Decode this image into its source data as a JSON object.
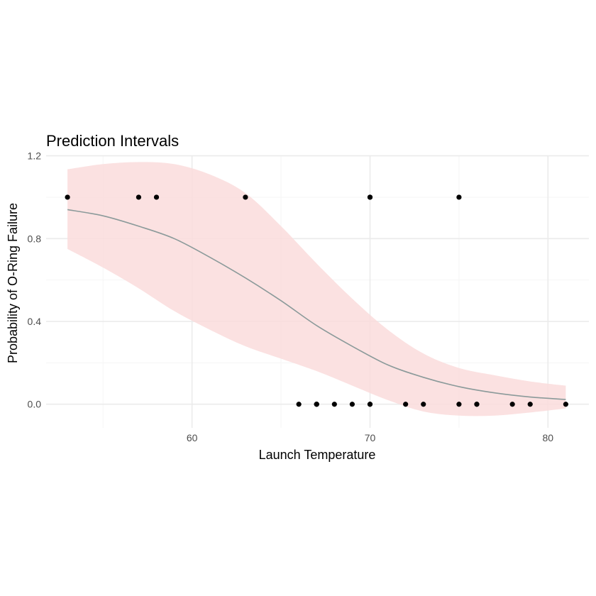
{
  "chart_data": {
    "type": "scatter",
    "title": "Prediction Intervals",
    "xlabel": "Launch Temperature",
    "ylabel": "Probability of O-Ring Failure",
    "xlim": [
      51.8,
      82.3
    ],
    "ylim": [
      -0.114,
      1.202
    ],
    "x_ticks": [
      60,
      70,
      80
    ],
    "x_tick_labels": [
      "60",
      "70",
      "80"
    ],
    "x_minor_ticks": [
      55,
      65,
      75
    ],
    "y_ticks": [
      0.0,
      0.4,
      0.8,
      1.2
    ],
    "y_tick_labels": [
      "0.0",
      "0.4",
      "0.8",
      "1.2"
    ],
    "y_minor_ticks": [
      0.2,
      0.6,
      1.0
    ],
    "grid": true,
    "points": [
      {
        "x": 53,
        "y": 1
      },
      {
        "x": 57,
        "y": 1
      },
      {
        "x": 58,
        "y": 1
      },
      {
        "x": 63,
        "y": 1
      },
      {
        "x": 66,
        "y": 0
      },
      {
        "x": 67,
        "y": 0
      },
      {
        "x": 67,
        "y": 0
      },
      {
        "x": 67,
        "y": 0
      },
      {
        "x": 68,
        "y": 0
      },
      {
        "x": 69,
        "y": 0
      },
      {
        "x": 70,
        "y": 0
      },
      {
        "x": 70,
        "y": 0
      },
      {
        "x": 70,
        "y": 1
      },
      {
        "x": 70,
        "y": 1
      },
      {
        "x": 72,
        "y": 0
      },
      {
        "x": 73,
        "y": 0
      },
      {
        "x": 75,
        "y": 0
      },
      {
        "x": 75,
        "y": 1
      },
      {
        "x": 76,
        "y": 0
      },
      {
        "x": 76,
        "y": 0
      },
      {
        "x": 78,
        "y": 0
      },
      {
        "x": 79,
        "y": 0
      },
      {
        "x": 81,
        "y": 0
      }
    ],
    "fit_line": {
      "x": [
        53,
        55,
        57,
        59,
        61,
        63,
        65,
        67,
        69,
        71,
        73,
        75,
        77,
        79,
        81
      ],
      "y": [
        0.94,
        0.91,
        0.86,
        0.8,
        0.71,
        0.61,
        0.5,
        0.38,
        0.28,
        0.19,
        0.13,
        0.085,
        0.055,
        0.035,
        0.023
      ]
    },
    "interval": {
      "x": [
        53,
        55,
        57,
        59,
        61,
        63,
        65,
        67,
        69,
        71,
        73,
        75,
        77,
        79,
        81
      ],
      "lower": [
        0.75,
        0.66,
        0.56,
        0.45,
        0.36,
        0.28,
        0.22,
        0.16,
        0.09,
        0.02,
        -0.035,
        -0.055,
        -0.055,
        -0.04,
        -0.02
      ],
      "upper": [
        1.135,
        1.16,
        1.17,
        1.16,
        1.11,
        1.02,
        0.86,
        0.68,
        0.51,
        0.36,
        0.245,
        0.175,
        0.14,
        0.11,
        0.09
      ]
    },
    "colors": {
      "points": "#000000",
      "fit_line": "#8b9a9a",
      "interval": "#fadcdc",
      "grid_major": "#ebebeb",
      "grid_minor": "#f5f5f5"
    }
  }
}
